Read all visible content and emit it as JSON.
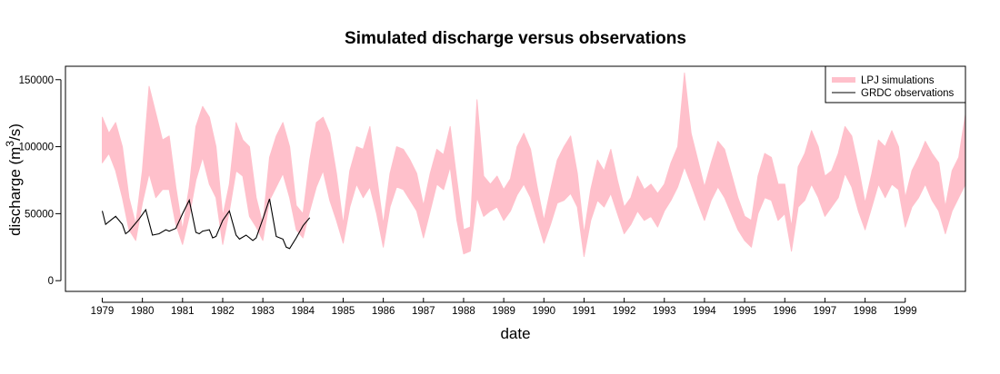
{
  "chart_data": {
    "type": "area",
    "title": "Simulated discharge versus observations",
    "xlabel": "date",
    "ylabel": "discharge (m",
    "ylabel_superscript": "3",
    "ylabel_suffix": "/s)",
    "x_range": [
      "1978-02",
      "2000-07"
    ],
    "ylim": [
      -8000,
      160000
    ],
    "y_ticks": [
      0,
      50000,
      100000,
      150000
    ],
    "x_tick_labels": [
      "1979",
      "1980",
      "1981",
      "1982",
      "1983",
      "1984",
      "1985",
      "1986",
      "1987",
      "1988",
      "1989",
      "1990",
      "1991",
      "1992",
      "1993",
      "1994",
      "1995",
      "1996",
      "1997",
      "1998",
      "1999"
    ],
    "grid": false,
    "legend": {
      "placement": "top-right",
      "entries": [
        "LPJ simulations",
        "GRDC observations"
      ]
    },
    "colors": {
      "simulations": "#FFC0CB",
      "observations": "#000000"
    },
    "series": [
      {
        "name": "LPJ simulations",
        "kind": "band",
        "points": [
          [
            "1979-01",
            88000,
            122000
          ],
          [
            "1979-03",
            95000,
            110000
          ],
          [
            "1979-05",
            82000,
            118000
          ],
          [
            "1979-07",
            62000,
            100000
          ],
          [
            "1979-09",
            38000,
            62000
          ],
          [
            "1979-11",
            30000,
            42000
          ],
          [
            "1980-01",
            58000,
            82000
          ],
          [
            "1980-03",
            80000,
            145000
          ],
          [
            "1980-05",
            62000,
            125000
          ],
          [
            "1980-07",
            68000,
            105000
          ],
          [
            "1980-09",
            68000,
            108000
          ],
          [
            "1980-11",
            42000,
            70000
          ],
          [
            "1981-01",
            27000,
            38000
          ],
          [
            "1981-03",
            48000,
            70000
          ],
          [
            "1981-05",
            75000,
            115000
          ],
          [
            "1981-07",
            92000,
            130000
          ],
          [
            "1981-09",
            72000,
            122000
          ],
          [
            "1981-11",
            62000,
            100000
          ],
          [
            "1982-01",
            27000,
            48000
          ],
          [
            "1982-03",
            52000,
            72000
          ],
          [
            "1982-05",
            82000,
            118000
          ],
          [
            "1982-07",
            78000,
            105000
          ],
          [
            "1982-09",
            48000,
            100000
          ],
          [
            "1982-11",
            40000,
            62000
          ],
          [
            "1983-01",
            30000,
            42000
          ],
          [
            "1983-03",
            60000,
            92000
          ],
          [
            "1983-05",
            70000,
            108000
          ],
          [
            "1983-07",
            80000,
            118000
          ],
          [
            "1983-09",
            62000,
            100000
          ],
          [
            "1983-11",
            38000,
            56000
          ],
          [
            "1984-01",
            32000,
            50000
          ],
          [
            "1984-03",
            52000,
            90000
          ],
          [
            "1984-05",
            70000,
            118000
          ],
          [
            "1984-07",
            82000,
            122000
          ],
          [
            "1984-09",
            60000,
            110000
          ],
          [
            "1984-11",
            45000,
            80000
          ],
          [
            "1985-01",
            28000,
            42000
          ],
          [
            "1985-03",
            55000,
            82000
          ],
          [
            "1985-05",
            72000,
            100000
          ],
          [
            "1985-07",
            62000,
            98000
          ],
          [
            "1985-09",
            70000,
            115000
          ],
          [
            "1985-11",
            50000,
            78000
          ],
          [
            "1986-01",
            25000,
            42000
          ],
          [
            "1986-03",
            55000,
            80000
          ],
          [
            "1986-05",
            70000,
            100000
          ],
          [
            "1986-07",
            68000,
            98000
          ],
          [
            "1986-09",
            60000,
            90000
          ],
          [
            "1986-11",
            52000,
            80000
          ],
          [
            "1987-01",
            32000,
            56000
          ],
          [
            "1987-03",
            52000,
            80000
          ],
          [
            "1987-05",
            72000,
            98000
          ],
          [
            "1987-07",
            68000,
            94000
          ],
          [
            "1987-09",
            85000,
            115000
          ],
          [
            "1987-11",
            45000,
            75000
          ],
          [
            "1988-01",
            20000,
            38000
          ],
          [
            "1988-03",
            22000,
            40000
          ],
          [
            "1988-05",
            62000,
            135000
          ],
          [
            "1988-07",
            48000,
            78000
          ],
          [
            "1988-09",
            52000,
            72000
          ],
          [
            "1988-11",
            55000,
            78000
          ],
          [
            "1989-01",
            45000,
            68000
          ],
          [
            "1989-03",
            52000,
            76000
          ],
          [
            "1989-05",
            64000,
            100000
          ],
          [
            "1989-07",
            72000,
            110000
          ],
          [
            "1989-09",
            62000,
            98000
          ],
          [
            "1989-11",
            45000,
            70000
          ],
          [
            "1990-01",
            28000,
            45000
          ],
          [
            "1990-03",
            42000,
            68000
          ],
          [
            "1990-05",
            58000,
            90000
          ],
          [
            "1990-07",
            60000,
            100000
          ],
          [
            "1990-09",
            65000,
            108000
          ],
          [
            "1990-11",
            55000,
            80000
          ],
          [
            "1991-01",
            18000,
            35000
          ],
          [
            "1991-03",
            45000,
            68000
          ],
          [
            "1991-05",
            60000,
            90000
          ],
          [
            "1991-07",
            55000,
            82000
          ],
          [
            "1991-09",
            65000,
            98000
          ],
          [
            "1991-11",
            50000,
            75000
          ],
          [
            "1992-01",
            35000,
            55000
          ],
          [
            "1992-03",
            42000,
            62000
          ],
          [
            "1992-05",
            52000,
            78000
          ],
          [
            "1992-07",
            45000,
            68000
          ],
          [
            "1992-09",
            48000,
            72000
          ],
          [
            "1992-11",
            40000,
            65000
          ],
          [
            "1993-01",
            52000,
            72000
          ],
          [
            "1993-03",
            60000,
            88000
          ],
          [
            "1993-05",
            70000,
            100000
          ],
          [
            "1993-07",
            85000,
            155000
          ],
          [
            "1993-09",
            72000,
            110000
          ],
          [
            "1993-11",
            58000,
            90000
          ],
          [
            "1994-01",
            45000,
            70000
          ],
          [
            "1994-03",
            60000,
            88000
          ],
          [
            "1994-05",
            70000,
            104000
          ],
          [
            "1994-07",
            62000,
            98000
          ],
          [
            "1994-09",
            50000,
            80000
          ],
          [
            "1994-11",
            38000,
            62000
          ],
          [
            "1995-01",
            30000,
            48000
          ],
          [
            "1995-03",
            25000,
            45000
          ],
          [
            "1995-05",
            50000,
            78000
          ],
          [
            "1995-07",
            62000,
            95000
          ],
          [
            "1995-09",
            60000,
            92000
          ],
          [
            "1995-11",
            45000,
            72000
          ],
          [
            "1996-01",
            50000,
            72000
          ],
          [
            "1996-03",
            22000,
            40000
          ],
          [
            "1996-05",
            55000,
            85000
          ],
          [
            "1996-07",
            60000,
            95000
          ],
          [
            "1996-09",
            72000,
            112000
          ],
          [
            "1996-11",
            62000,
            100000
          ],
          [
            "1997-01",
            48000,
            78000
          ],
          [
            "1997-03",
            55000,
            82000
          ],
          [
            "1997-05",
            62000,
            95000
          ],
          [
            "1997-07",
            80000,
            115000
          ],
          [
            "1997-09",
            70000,
            108000
          ],
          [
            "1997-11",
            52000,
            85000
          ],
          [
            "1998-01",
            38000,
            58000
          ],
          [
            "1998-03",
            55000,
            80000
          ],
          [
            "1998-05",
            72000,
            105000
          ],
          [
            "1998-07",
            62000,
            100000
          ],
          [
            "1998-09",
            72000,
            112000
          ],
          [
            "1998-11",
            68000,
            100000
          ],
          [
            "1999-01",
            40000,
            62000
          ],
          [
            "1999-03",
            55000,
            82000
          ],
          [
            "1999-05",
            62000,
            92000
          ],
          [
            "1999-07",
            72000,
            104000
          ],
          [
            "1999-09",
            60000,
            95000
          ],
          [
            "1999-11",
            52000,
            88000
          ],
          [
            "2000-01",
            35000,
            55000
          ],
          [
            "2000-03",
            52000,
            82000
          ],
          [
            "2000-05",
            62000,
            92000
          ],
          [
            "2000-07",
            72000,
            124000
          ]
        ]
      },
      {
        "name": "GRDC observations",
        "kind": "line",
        "points": [
          [
            "1979-01",
            52000
          ],
          [
            "1979-02",
            42000
          ],
          [
            "1979-03",
            44000
          ],
          [
            "1979-05",
            48000
          ],
          [
            "1979-07",
            42000
          ],
          [
            "1979-08",
            35000
          ],
          [
            "1979-09",
            37000
          ],
          [
            "1979-10",
            40000
          ],
          [
            "1979-12",
            46000
          ],
          [
            "1980-02",
            53000
          ],
          [
            "1980-04",
            34000
          ],
          [
            "1980-06",
            35000
          ],
          [
            "1980-08",
            38000
          ],
          [
            "1980-09",
            37000
          ],
          [
            "1980-11",
            39000
          ],
          [
            "1981-01",
            50000
          ],
          [
            "1981-03",
            60000
          ],
          [
            "1981-05",
            36000
          ],
          [
            "1981-06",
            35000
          ],
          [
            "1981-07",
            37000
          ],
          [
            "1981-09",
            38000
          ],
          [
            "1981-10",
            32000
          ],
          [
            "1981-11",
            33000
          ],
          [
            "1982-01",
            45000
          ],
          [
            "1982-03",
            52000
          ],
          [
            "1982-05",
            34000
          ],
          [
            "1982-06",
            31000
          ],
          [
            "1982-08",
            34000
          ],
          [
            "1982-10",
            30000
          ],
          [
            "1982-11",
            32000
          ],
          [
            "1983-01",
            46000
          ],
          [
            "1983-03",
            61000
          ],
          [
            "1983-05",
            33000
          ],
          [
            "1983-07",
            31000
          ],
          [
            "1983-08",
            25000
          ],
          [
            "1983-09",
            24000
          ],
          [
            "1983-11",
            32000
          ],
          [
            "1984-01",
            41000
          ],
          [
            "1984-03",
            47000
          ]
        ]
      }
    ]
  }
}
